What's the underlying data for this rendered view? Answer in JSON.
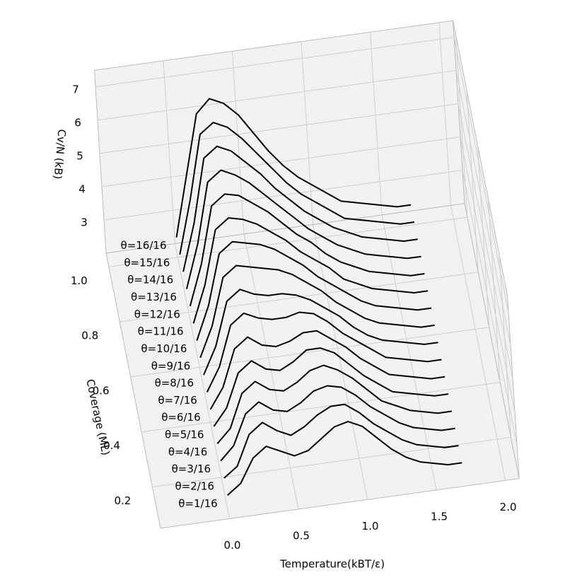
{
  "chart_data": {
    "type": "waterfall3d",
    "xlabel": "Temperature(kBT/ε)",
    "ylabel": "Coverage (ML)",
    "zlabel": "Cv/N (kB)",
    "xlim": [
      -0.5,
      2.1
    ],
    "ylim": [
      0.05,
      1.05
    ],
    "zlim": [
      2,
      7.5
    ],
    "xticks": [
      {
        "value": 0,
        "label": "0.0"
      },
      0.5,
      {
        "value": 1,
        "label": "1.0"
      },
      1.5,
      {
        "value": 2,
        "label": "2.0"
      }
    ],
    "yticks": [
      0.2,
      0.4,
      0.6,
      0.8,
      {
        "value": 1,
        "label": "1.0"
      }
    ],
    "zticks": [
      3,
      4,
      5,
      6,
      7
    ],
    "grid": true,
    "color": "#000000",
    "x": [
      0,
      0.1,
      0.2,
      0.3,
      0.4,
      0.5,
      0.6,
      0.7,
      0.8,
      0.9,
      1.0,
      1.1,
      1.2,
      1.3,
      1.4,
      1.5,
      1.6,
      1.7
    ],
    "series": [
      {
        "name": "θ=1/16",
        "coverage": 0.0625,
        "values": [
          2.6,
          2.9,
          3.6,
          3.9,
          3.7,
          3.5,
          3.6,
          3.9,
          4.2,
          4.3,
          4.1,
          3.7,
          3.3,
          3.0,
          2.8,
          2.7,
          2.6,
          2.6
        ]
      },
      {
        "name": "θ=2/16",
        "coverage": 0.125,
        "values": [
          2.6,
          2.9,
          3.8,
          4.1,
          3.8,
          3.6,
          3.8,
          4.1,
          4.3,
          4.3,
          4.0,
          3.6,
          3.3,
          3.0,
          2.8,
          2.7,
          2.6,
          2.6
        ]
      },
      {
        "name": "θ=3/16",
        "coverage": 0.1875,
        "values": [
          2.6,
          3.0,
          3.9,
          4.2,
          3.9,
          3.8,
          4.0,
          4.3,
          4.4,
          4.3,
          4.0,
          3.6,
          3.3,
          3.0,
          2.8,
          2.7,
          2.6,
          2.6
        ]
      },
      {
        "name": "θ=4/16",
        "coverage": 0.25,
        "values": [
          2.6,
          3.0,
          4.0,
          4.3,
          4.0,
          3.9,
          4.1,
          4.4,
          4.5,
          4.3,
          4.0,
          3.6,
          3.2,
          3.0,
          2.8,
          2.7,
          2.6,
          2.6
        ]
      },
      {
        "name": "θ=5/16",
        "coverage": 0.3125,
        "values": [
          2.6,
          3.1,
          4.1,
          4.4,
          4.1,
          4.0,
          4.2,
          4.5,
          4.5,
          4.3,
          3.9,
          3.5,
          3.2,
          2.9,
          2.8,
          2.7,
          2.6,
          2.6
        ]
      },
      {
        "name": "θ=6/16",
        "coverage": 0.375,
        "values": [
          2.6,
          3.2,
          4.3,
          4.6,
          4.3,
          4.2,
          4.3,
          4.5,
          4.5,
          4.2,
          3.9,
          3.5,
          3.2,
          2.9,
          2.8,
          2.7,
          2.6,
          2.6
        ]
      },
      {
        "name": "θ=7/16",
        "coverage": 0.4375,
        "values": [
          2.6,
          3.3,
          4.5,
          4.8,
          4.6,
          4.5,
          4.5,
          4.6,
          4.5,
          4.2,
          3.8,
          3.5,
          3.2,
          2.9,
          2.8,
          2.7,
          2.6,
          2.6
        ]
      },
      {
        "name": "θ=8/16",
        "coverage": 0.5,
        "values": [
          2.6,
          3.4,
          4.7,
          5.0,
          4.8,
          4.7,
          4.7,
          4.6,
          4.4,
          4.1,
          3.8,
          3.4,
          3.1,
          2.9,
          2.8,
          2.7,
          2.6,
          2.6
        ]
      },
      {
        "name": "θ=9/16",
        "coverage": 0.5625,
        "values": [
          2.6,
          3.5,
          4.9,
          5.2,
          5.1,
          5.0,
          4.9,
          4.7,
          4.4,
          4.1,
          3.7,
          3.4,
          3.1,
          2.9,
          2.8,
          2.7,
          2.6,
          2.6
        ]
      },
      {
        "name": "θ=10/16",
        "coverage": 0.625,
        "values": [
          2.6,
          3.6,
          5.1,
          5.4,
          5.3,
          5.2,
          5.0,
          4.7,
          4.4,
          4.0,
          3.7,
          3.4,
          3.1,
          2.9,
          2.8,
          2.7,
          2.6,
          2.6
        ]
      },
      {
        "name": "θ=11/16",
        "coverage": 0.6875,
        "values": [
          2.6,
          3.7,
          5.3,
          5.6,
          5.5,
          5.3,
          5.0,
          4.7,
          4.3,
          4.0,
          3.7,
          3.3,
          3.1,
          2.9,
          2.8,
          2.7,
          2.6,
          2.6
        ]
      },
      {
        "name": "θ=12/16",
        "coverage": 0.75,
        "values": [
          2.6,
          3.8,
          5.5,
          5.8,
          5.7,
          5.4,
          5.1,
          4.7,
          4.3,
          4.0,
          3.6,
          3.3,
          3.1,
          2.9,
          2.8,
          2.7,
          2.6,
          2.6
        ]
      },
      {
        "name": "θ=13/16",
        "coverage": 0.8125,
        "values": [
          2.6,
          3.9,
          5.7,
          6.0,
          5.8,
          5.5,
          5.1,
          4.7,
          4.3,
          3.9,
          3.6,
          3.3,
          3.1,
          2.9,
          2.8,
          2.7,
          2.6,
          2.6
        ]
      },
      {
        "name": "θ=14/16",
        "coverage": 0.875,
        "values": [
          2.6,
          4.0,
          5.9,
          6.2,
          6.0,
          5.6,
          5.2,
          4.7,
          4.3,
          3.9,
          3.6,
          3.3,
          3.1,
          2.9,
          2.8,
          2.7,
          2.6,
          2.6
        ]
      },
      {
        "name": "θ=15/16",
        "coverage": 0.9375,
        "values": [
          2.6,
          4.2,
          6.1,
          6.4,
          6.2,
          5.8,
          5.3,
          4.8,
          4.3,
          3.9,
          3.6,
          3.3,
          3.0,
          2.9,
          2.8,
          2.7,
          2.6,
          2.6
        ]
      },
      {
        "name": "θ=16/16",
        "coverage": 1.0,
        "values": [
          2.6,
          4.4,
          6.2,
          6.6,
          6.4,
          6.0,
          5.4,
          4.8,
          4.3,
          3.9,
          3.6,
          3.3,
          3.0,
          2.9,
          2.8,
          2.7,
          2.6,
          2.6
        ]
      }
    ]
  }
}
